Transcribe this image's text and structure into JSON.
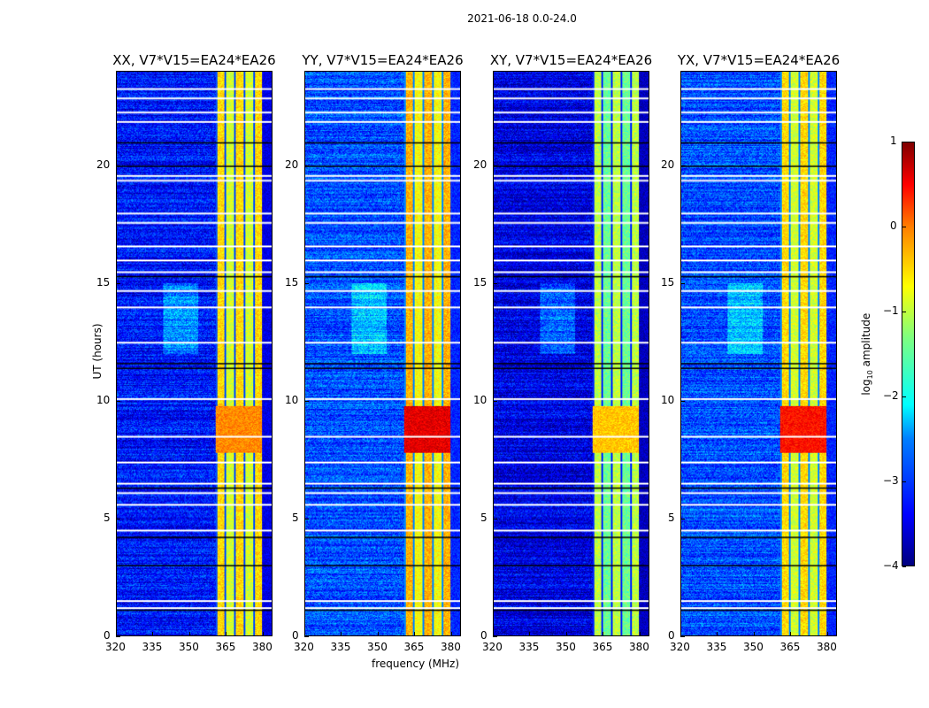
{
  "chart_data": {
    "type": "heatmap",
    "title": "2021-06-18 0.0-24.0",
    "xlabel": "frequency (MHz)",
    "ylabel": "UT (hours)",
    "xlim": [
      320,
      384
    ],
    "ylim": [
      0,
      24
    ],
    "xticks": [
      320,
      335,
      350,
      365,
      380
    ],
    "yticks": [
      0,
      5,
      10,
      15,
      20
    ],
    "colorbar": {
      "label": "log10 amplitude",
      "label_main": "log",
      "label_sub": "10",
      "label_tail": " amplitude",
      "range": [
        -4,
        1
      ],
      "ticks": [
        1,
        0,
        -1,
        -2,
        -3,
        -4
      ],
      "colormap": "jet"
    },
    "panels": [
      {
        "title": "XX, V7*V15=EA24*EA26",
        "background_level": -3.3,
        "band_level": -0.8,
        "peak_level": -0.3
      },
      {
        "title": "YY, V7*V15=EA24*EA26",
        "background_level": -3.0,
        "band_level": -0.6,
        "peak_level": 0.5
      },
      {
        "title": "XY, V7*V15=EA24*EA26",
        "background_level": -3.5,
        "band_level": -1.3,
        "peak_level": -0.6
      },
      {
        "title": "YX, V7*V15=EA24*EA26",
        "background_level": -3.0,
        "band_level": -0.8,
        "peak_level": 0.3
      }
    ],
    "bright_band_MHz": [
      360.5,
      380
    ],
    "flagged_hours": [
      23.3,
      22.9,
      22.3,
      21.9,
      19.6,
      19.4,
      18.0,
      17.6,
      16.6,
      16.0,
      15.5,
      14.7,
      14.0,
      12.5,
      10.1,
      8.5,
      7.4,
      6.5,
      6.1,
      5.6,
      4.5,
      1.5,
      1.2
    ],
    "dark_hours": [
      21.0,
      20.0,
      15.3,
      11.6,
      11.4,
      6.3,
      4.2,
      3.0,
      1.1
    ]
  }
}
